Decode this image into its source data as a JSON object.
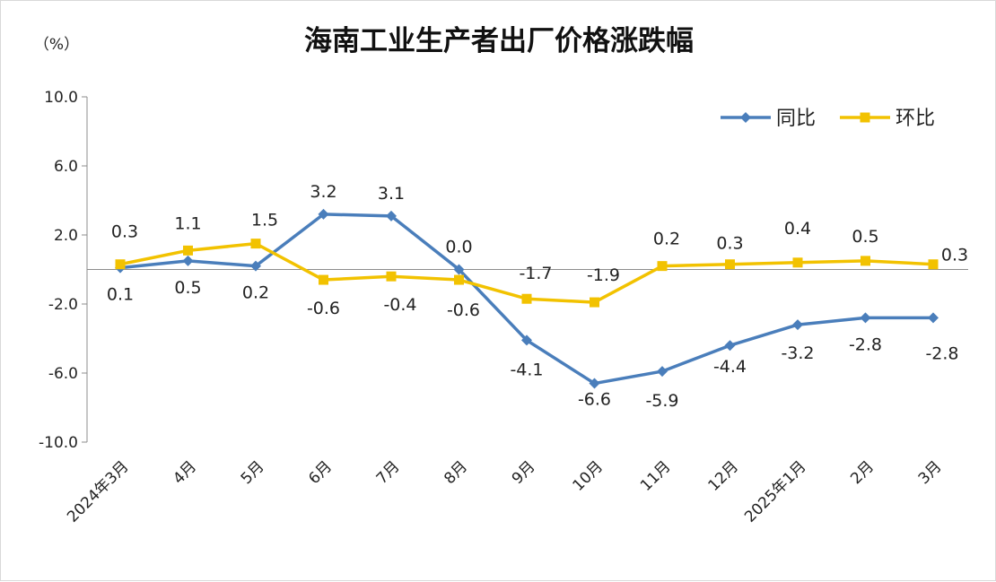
{
  "chart_data": {
    "type": "line",
    "title": "海南工业生产者出厂价格涨跌幅",
    "ylabel": "（%）",
    "xlabel": "",
    "ylim": [
      -10,
      10
    ],
    "yticks": [
      10,
      6,
      2,
      -2,
      -6,
      -10
    ],
    "ytick_labels": [
      "10.0",
      "6.0",
      "2.0",
      "-2.0",
      "-6.0",
      "-10.0"
    ],
    "categories": [
      "2024年3月",
      "4月",
      "5月",
      "6月",
      "7月",
      "8月",
      "9月",
      "10月",
      "11月",
      "12月",
      "2025年1月",
      "2月",
      "3月"
    ],
    "legend_position": "top-right",
    "grid": false,
    "series": [
      {
        "name": "同比",
        "color": "#4a7ebb",
        "marker": "diamond",
        "values": [
          0.1,
          0.5,
          0.2,
          3.2,
          3.1,
          0.0,
          -4.1,
          -6.6,
          -5.9,
          -4.4,
          -3.2,
          -2.8,
          -2.8
        ],
        "labels": [
          "0.1",
          "0.5",
          "0.2",
          "3.2",
          "3.1",
          "0.0",
          "-4.1",
          "-6.6",
          "-5.9",
          "-4.4",
          "-3.2",
          "-2.8",
          "-2.8"
        ]
      },
      {
        "name": "环比",
        "color": "#f2c200",
        "marker": "square",
        "values": [
          0.3,
          1.1,
          1.5,
          -0.6,
          -0.4,
          -0.6,
          -1.7,
          -1.9,
          0.2,
          0.3,
          0.4,
          0.5,
          0.3
        ],
        "labels": [
          "0.3",
          "1.1",
          "1.5",
          "-0.6",
          "-0.4",
          "-0.6",
          "-1.7",
          "-1.9",
          "0.2",
          "0.3",
          "0.4",
          "0.5",
          "0.3"
        ]
      }
    ]
  }
}
